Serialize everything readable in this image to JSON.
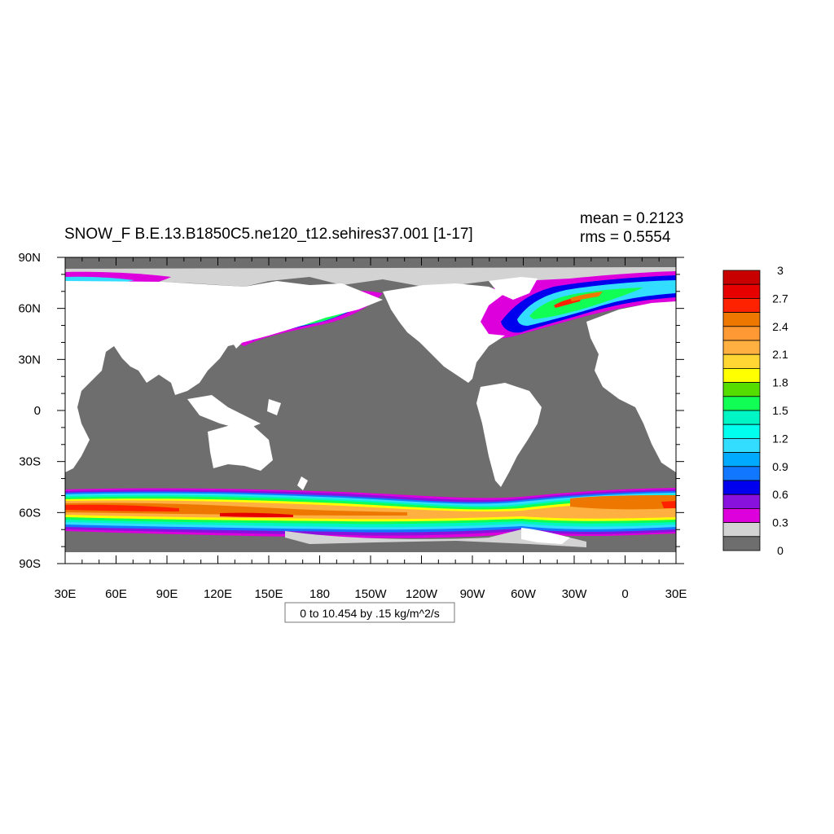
{
  "title": "SNOW_F B.E.13.B1850C5.ne120_t12.sehires37.001 [1-17]",
  "stats": {
    "mean": "mean = 0.2123",
    "rms": "rms = 0.5554"
  },
  "footnote": "0 to 10.454 by .15 kg/m^2/s",
  "map_data": {
    "type": "filled-contour-map",
    "variable": "SNOW_F",
    "projection": "cylindrical-equidistant",
    "center_longitude": 210,
    "lon_range": [
      30,
      390
    ],
    "lat_range": [
      -90,
      90
    ],
    "x_tick_labels": [
      "30E",
      "60E",
      "90E",
      "120E",
      "150E",
      "180",
      "150W",
      "120W",
      "90W",
      "60W",
      "30W",
      "0",
      "30E"
    ],
    "y_tick_labels": [
      "90N",
      "60N",
      "30N",
      "0",
      "30S",
      "60S",
      "90S"
    ],
    "colorbar": {
      "labels": [
        "3",
        "2.7",
        "2.4",
        "2.1",
        "1.8",
        "1.5",
        "1.2",
        "0.9",
        "0.6",
        "0.3",
        "0"
      ],
      "colors": [
        "#c80000",
        "#e60000",
        "#ff2200",
        "#ee7700",
        "#ff9933",
        "#ffb040",
        "#ffd633",
        "#ffff00",
        "#55dd00",
        "#11ff55",
        "#00f5c5",
        "#00ffee",
        "#33ddff",
        "#00aaff",
        "#1177ff",
        "#0000ee",
        "#8811dd",
        "#dd00dd",
        "#d3d3d3",
        "#6e6e6e"
      ]
    },
    "colors": {
      "land": "#ffffff",
      "ocean_zero": "#6e6e6e",
      "sea_ice_low": "#d3d3d3"
    }
  }
}
